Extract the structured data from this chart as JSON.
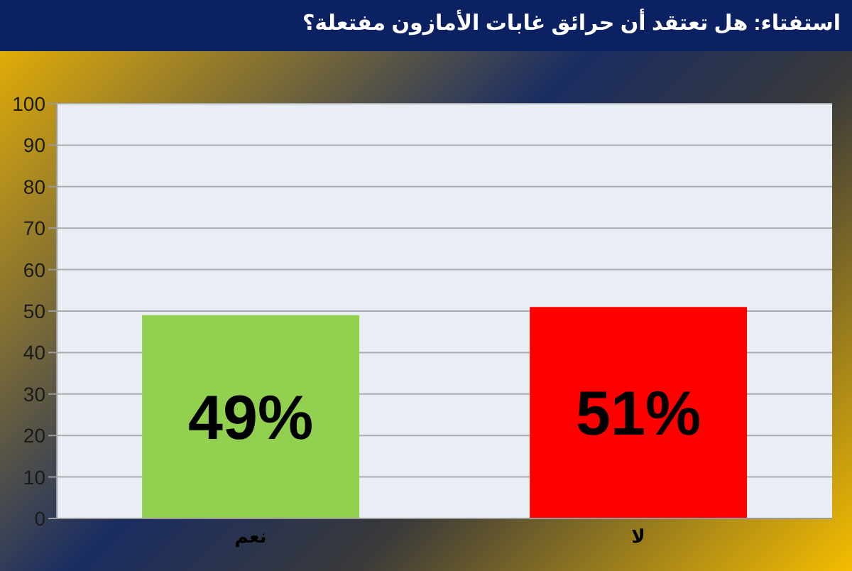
{
  "chart_data": {
    "type": "bar",
    "title": "استفتاء: هل تعتقد أن حرائق غابات الأمازون مفتعلة؟",
    "categories": [
      "نعم",
      "لا"
    ],
    "values": [
      49,
      51
    ],
    "colors": [
      "#92d050",
      "#ff0000"
    ],
    "value_labels": [
      "49%",
      "51%"
    ],
    "ylim": [
      0,
      100
    ],
    "yticks": [
      0,
      10,
      20,
      30,
      40,
      50,
      60,
      70,
      80,
      90,
      100
    ],
    "grid": "y"
  }
}
